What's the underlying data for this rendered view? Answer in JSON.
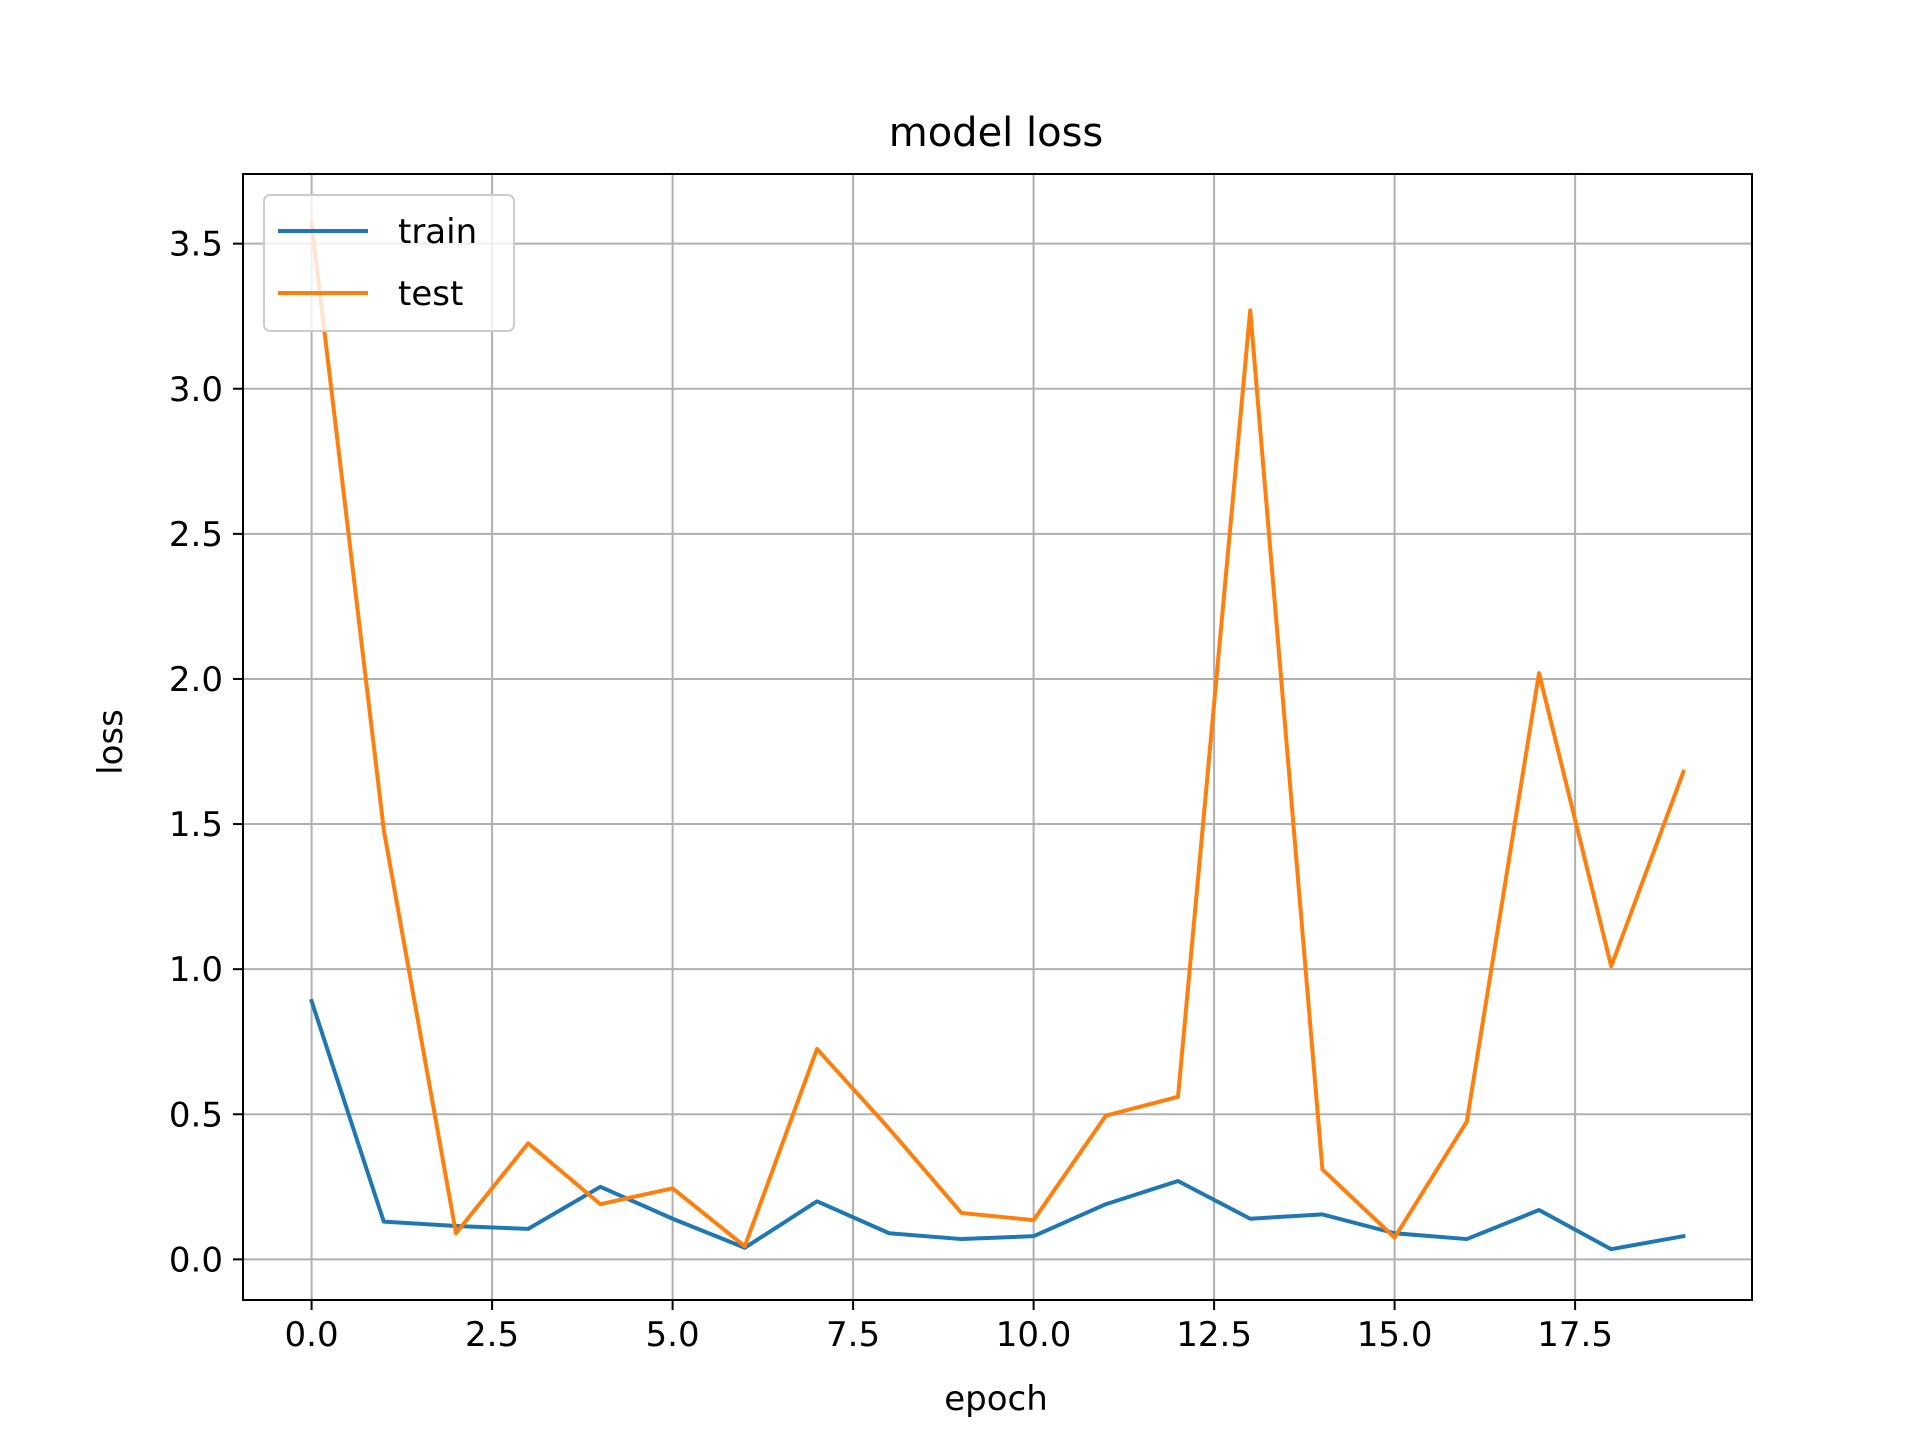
{
  "chart_data": {
    "type": "line",
    "title": "model loss",
    "xlabel": "epoch",
    "ylabel": "loss",
    "xlim": [
      -0.95,
      19.95
    ],
    "ylim": [
      -0.14,
      3.74
    ],
    "xticks": [
      0.0,
      2.5,
      5.0,
      7.5,
      10.0,
      12.5,
      15.0,
      17.5
    ],
    "xtick_labels": [
      "0.0",
      "2.5",
      "5.0",
      "7.5",
      "10.0",
      "12.5",
      "15.0",
      "17.5"
    ],
    "yticks": [
      0.0,
      0.5,
      1.0,
      1.5,
      2.0,
      2.5,
      3.0,
      3.5
    ],
    "ytick_labels": [
      "0.0",
      "0.5",
      "1.0",
      "1.5",
      "2.0",
      "2.5",
      "3.0",
      "3.5"
    ],
    "grid": true,
    "legend_position": "top-left",
    "x": [
      0,
      1,
      2,
      3,
      4,
      5,
      6,
      7,
      8,
      9,
      10,
      11,
      12,
      13,
      14,
      15,
      16,
      17,
      18,
      19
    ],
    "series": [
      {
        "name": "train",
        "color": "#1f77b4",
        "values": [
          0.89,
          0.13,
          0.115,
          0.105,
          0.25,
          0.14,
          0.04,
          0.2,
          0.09,
          0.07,
          0.08,
          0.19,
          0.27,
          0.14,
          0.155,
          0.09,
          0.07,
          0.17,
          0.035,
          0.08
        ]
      },
      {
        "name": "test",
        "color": "#ff7f0e",
        "values": [
          3.57,
          1.48,
          0.09,
          0.4,
          0.19,
          0.245,
          0.045,
          0.725,
          0.45,
          0.16,
          0.135,
          0.495,
          0.56,
          3.27,
          0.31,
          0.075,
          0.475,
          2.02,
          1.01,
          1.68
        ]
      }
    ]
  }
}
